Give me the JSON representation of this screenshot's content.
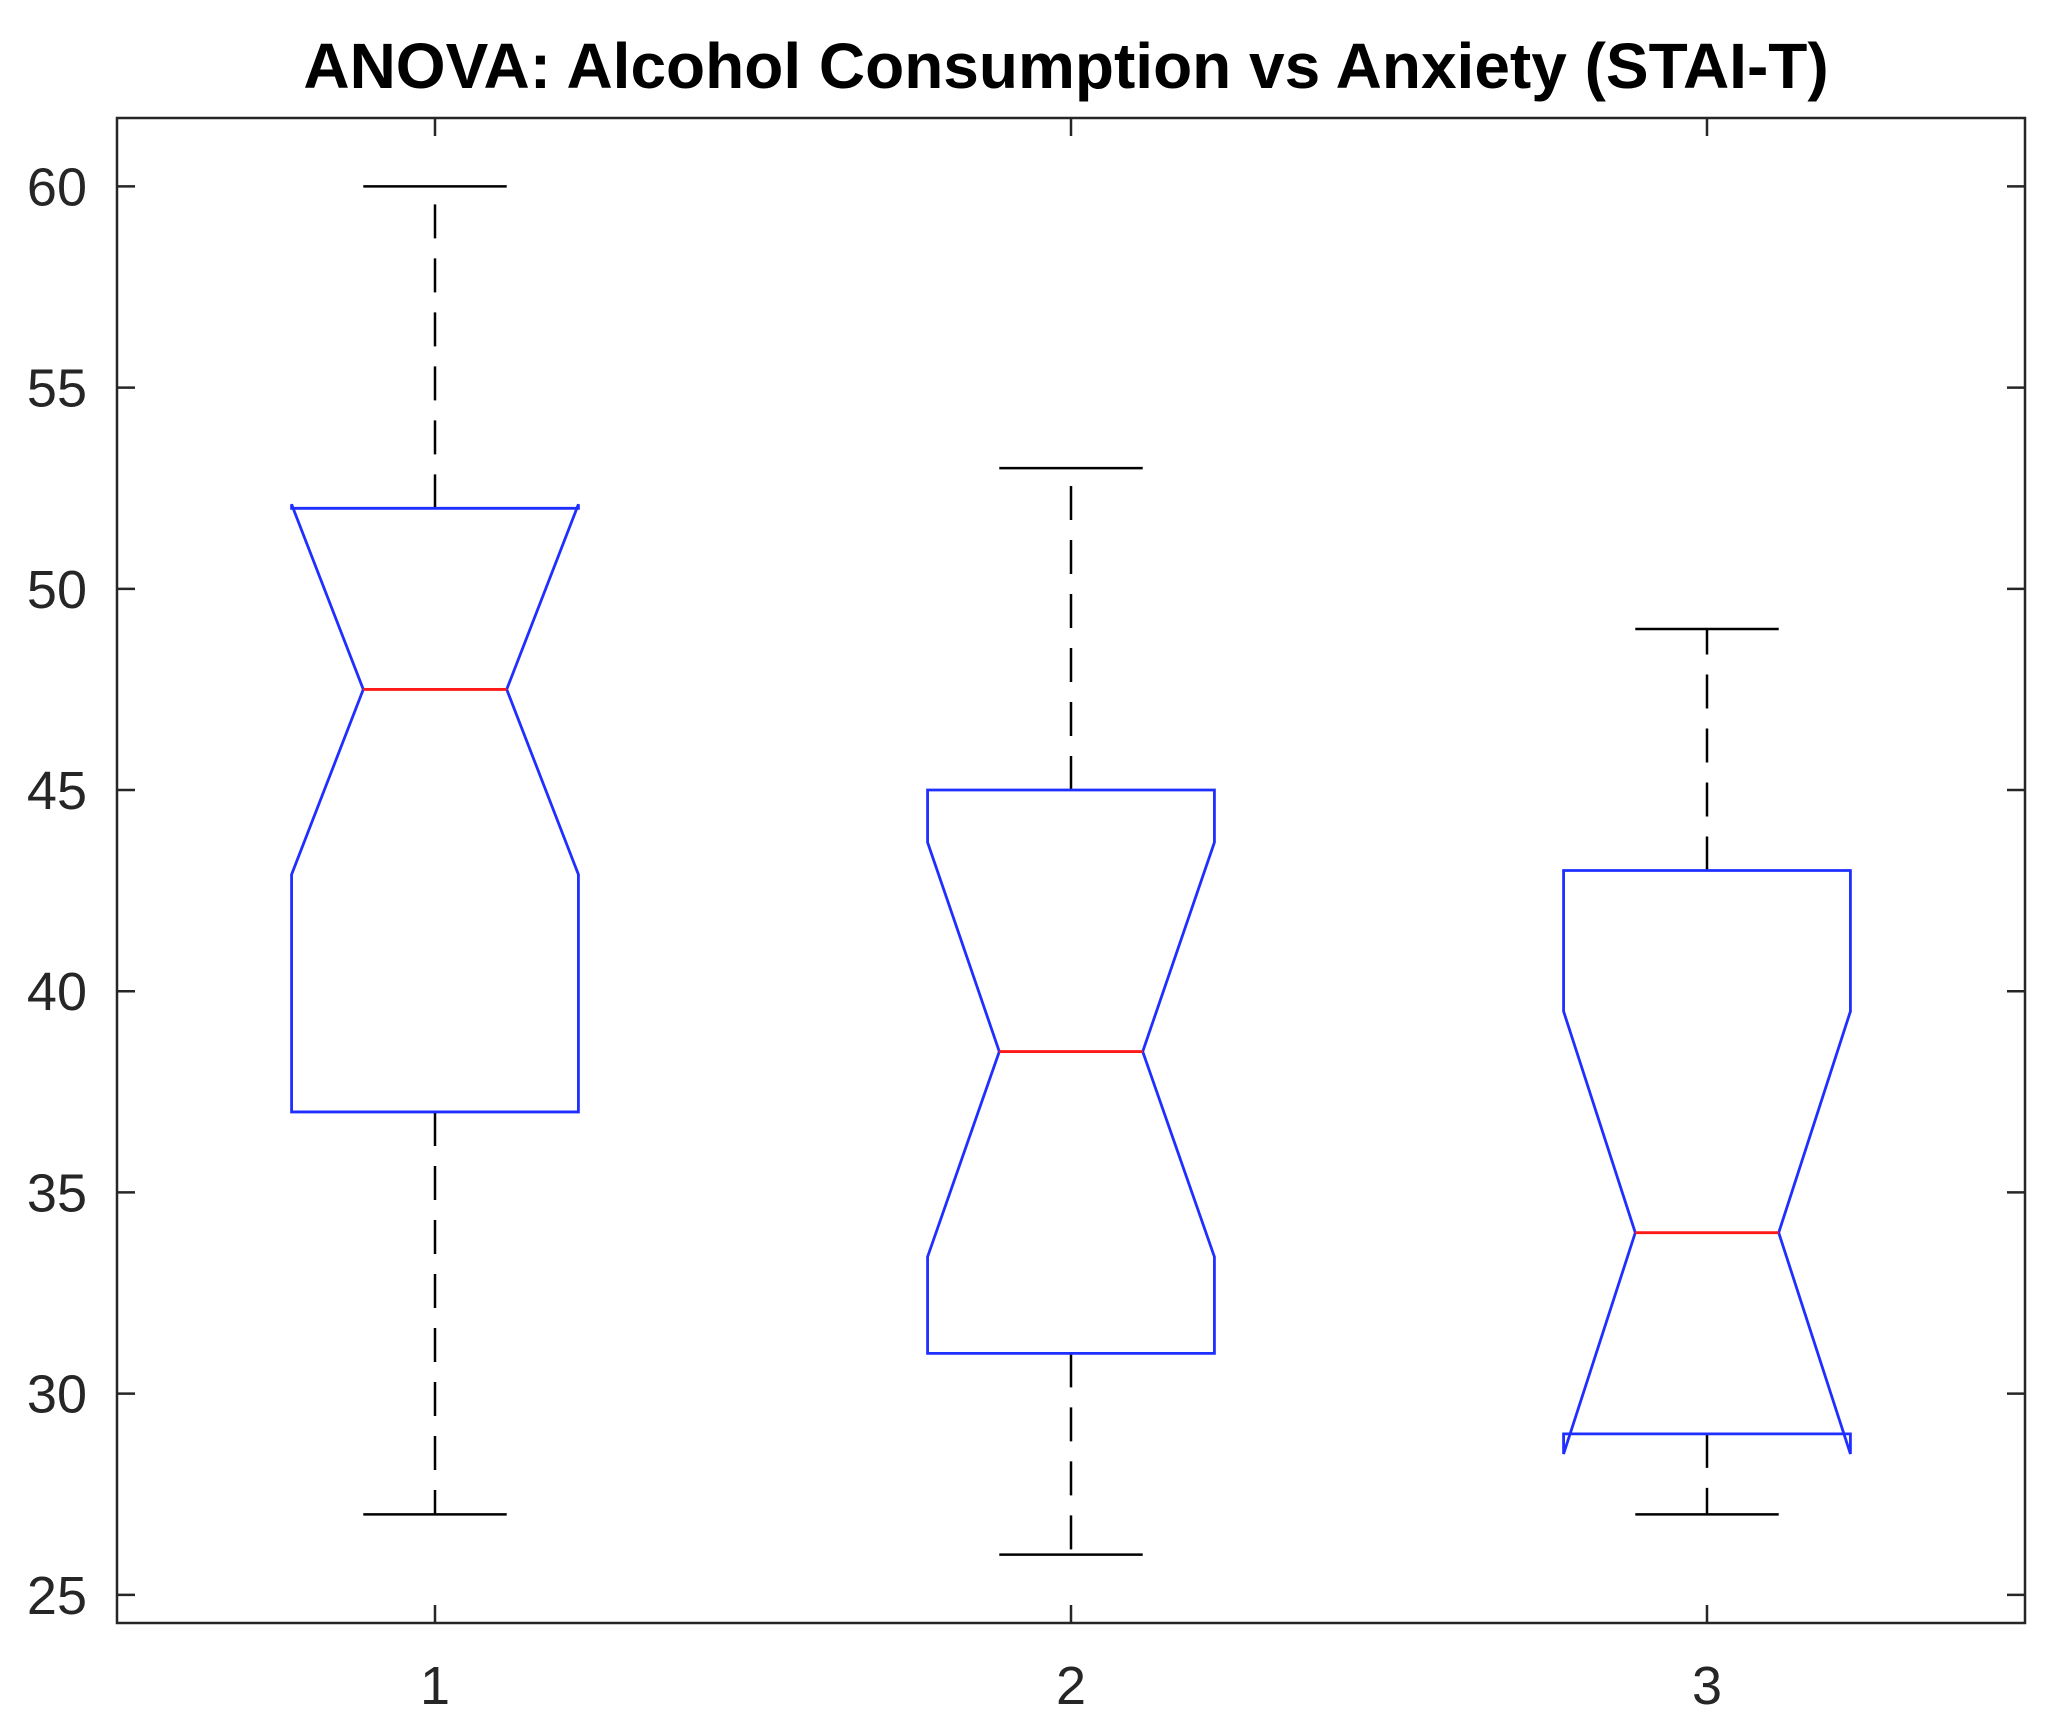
{
  "chart_data": {
    "type": "boxplot",
    "title": "ANOVA: Alcohol Consumption vs Anxiety (STAI-T)",
    "xlabel": "",
    "ylabel": "",
    "categories": [
      "1",
      "2",
      "3"
    ],
    "ylim": [
      24.3,
      61.7
    ],
    "yticks": [
      25,
      30,
      35,
      40,
      45,
      50,
      55,
      60
    ],
    "notched": true,
    "boxes": [
      {
        "name": "1",
        "min": 27,
        "q1": 37,
        "median": 47.5,
        "q3": 52,
        "max": 60,
        "notch_low": 42.9,
        "notch_high": 52.1
      },
      {
        "name": "2",
        "min": 26,
        "q1": 31,
        "median": 38.5,
        "q3": 45,
        "max": 53,
        "notch_low": 33.4,
        "notch_high": 43.7
      },
      {
        "name": "3",
        "min": 27,
        "q1": 29,
        "median": 34,
        "q3": 43,
        "max": 49,
        "notch_low": 28.5,
        "notch_high": 39.5
      }
    ],
    "colors": {
      "box": "#1f2fff",
      "median": "#ff1a1a",
      "whisker": "#000000",
      "axis": "#262626"
    }
  }
}
